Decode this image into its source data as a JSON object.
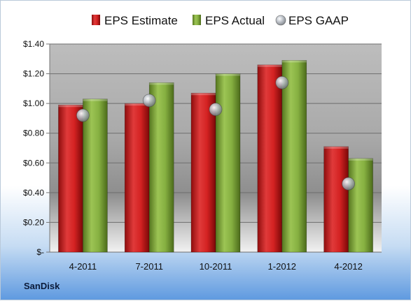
{
  "chart_data": {
    "type": "bar",
    "categories": [
      "4-2011",
      "7-2011",
      "10-2011",
      "1-2012",
      "4-2012"
    ],
    "series": [
      {
        "name": "EPS Estimate",
        "values": [
          0.99,
          1.0,
          1.07,
          1.26,
          0.71
        ],
        "color": "#cc1f1f",
        "kind": "bar"
      },
      {
        "name": "EPS Actual",
        "values": [
          1.03,
          1.14,
          1.2,
          1.29,
          0.63
        ],
        "color": "#7ea83a",
        "kind": "bar"
      },
      {
        "name": "EPS GAAP",
        "values": [
          0.92,
          1.02,
          0.96,
          1.14,
          0.46
        ],
        "color": "#a7aeb6",
        "kind": "marker"
      }
    ],
    "ylim": [
      0,
      1.4
    ],
    "yticks": [
      0,
      0.2,
      0.4,
      0.6,
      0.8,
      1.0,
      1.2,
      1.4
    ],
    "ytick_labels": [
      "$-",
      "$0.20",
      "$0.40",
      "$0.60",
      "$0.80",
      "$1.00",
      "$1.20",
      "$1.40"
    ],
    "grid": true,
    "legend_position": "top",
    "company": "SanDisk"
  }
}
